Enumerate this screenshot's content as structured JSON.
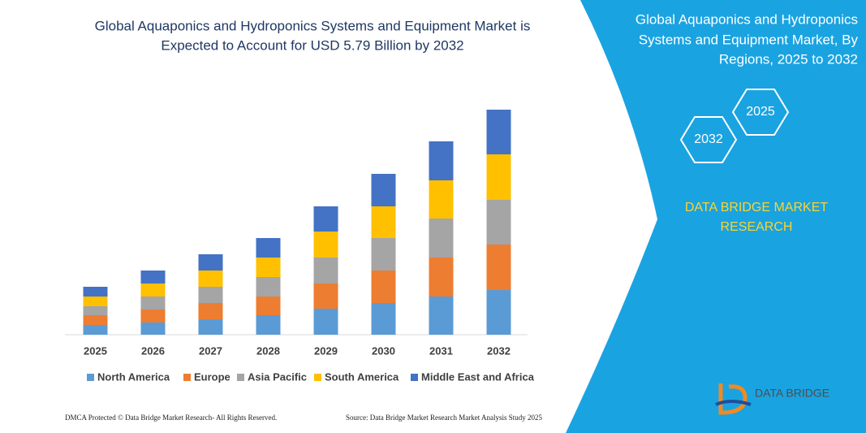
{
  "header": {
    "title": [
      "Global Aquaponics and Hydroponics Systems and Equipment Market is",
      "Expected to Account for USD 5.79 Billion by 2032"
    ]
  },
  "chart_data": {
    "type": "bar",
    "stacked": true,
    "categories": [
      "2025",
      "2026",
      "2027",
      "2028",
      "2029",
      "2030",
      "2031",
      "2032"
    ],
    "series": [
      {
        "name": "North America",
        "color": "#5b9bd5",
        "values": [
          12,
          15,
          19,
          24,
          32,
          39,
          47,
          55
        ]
      },
      {
        "name": "Europe",
        "color": "#ed7d31",
        "values": [
          12,
          16,
          20,
          23,
          31,
          40,
          48,
          56
        ]
      },
      {
        "name": "Asia Pacific",
        "color": "#a5a5a5",
        "values": [
          11,
          16,
          20,
          24,
          32,
          40,
          48,
          55
        ]
      },
      {
        "name": "South America",
        "color": "#ffc000",
        "values": [
          12,
          16,
          20,
          24,
          32,
          39,
          47,
          56
        ]
      },
      {
        "name": "Middle East and Africa",
        "color": "#4472c4",
        "values": [
          12,
          16,
          20,
          24,
          31,
          40,
          48,
          55
        ]
      }
    ],
    "ylim": [
      0,
      277
    ]
  },
  "panel": {
    "title": [
      "Global Aquaponics and Hydroponics",
      "Systems and Equipment Market, By",
      "Regions, 2025 to 2032"
    ],
    "hexagons": [
      "2025",
      "2032"
    ],
    "brand": [
      "DATA BRIDGE MARKET",
      "RESEARCH"
    ]
  },
  "logo": "DATA BRIDGE",
  "footer": {
    "left": "DMCA Protected © Data Bridge Market Research- All Rights Reserved.",
    "right": "Source: Data Bridge Market Research Market Analysis Study 2025"
  }
}
